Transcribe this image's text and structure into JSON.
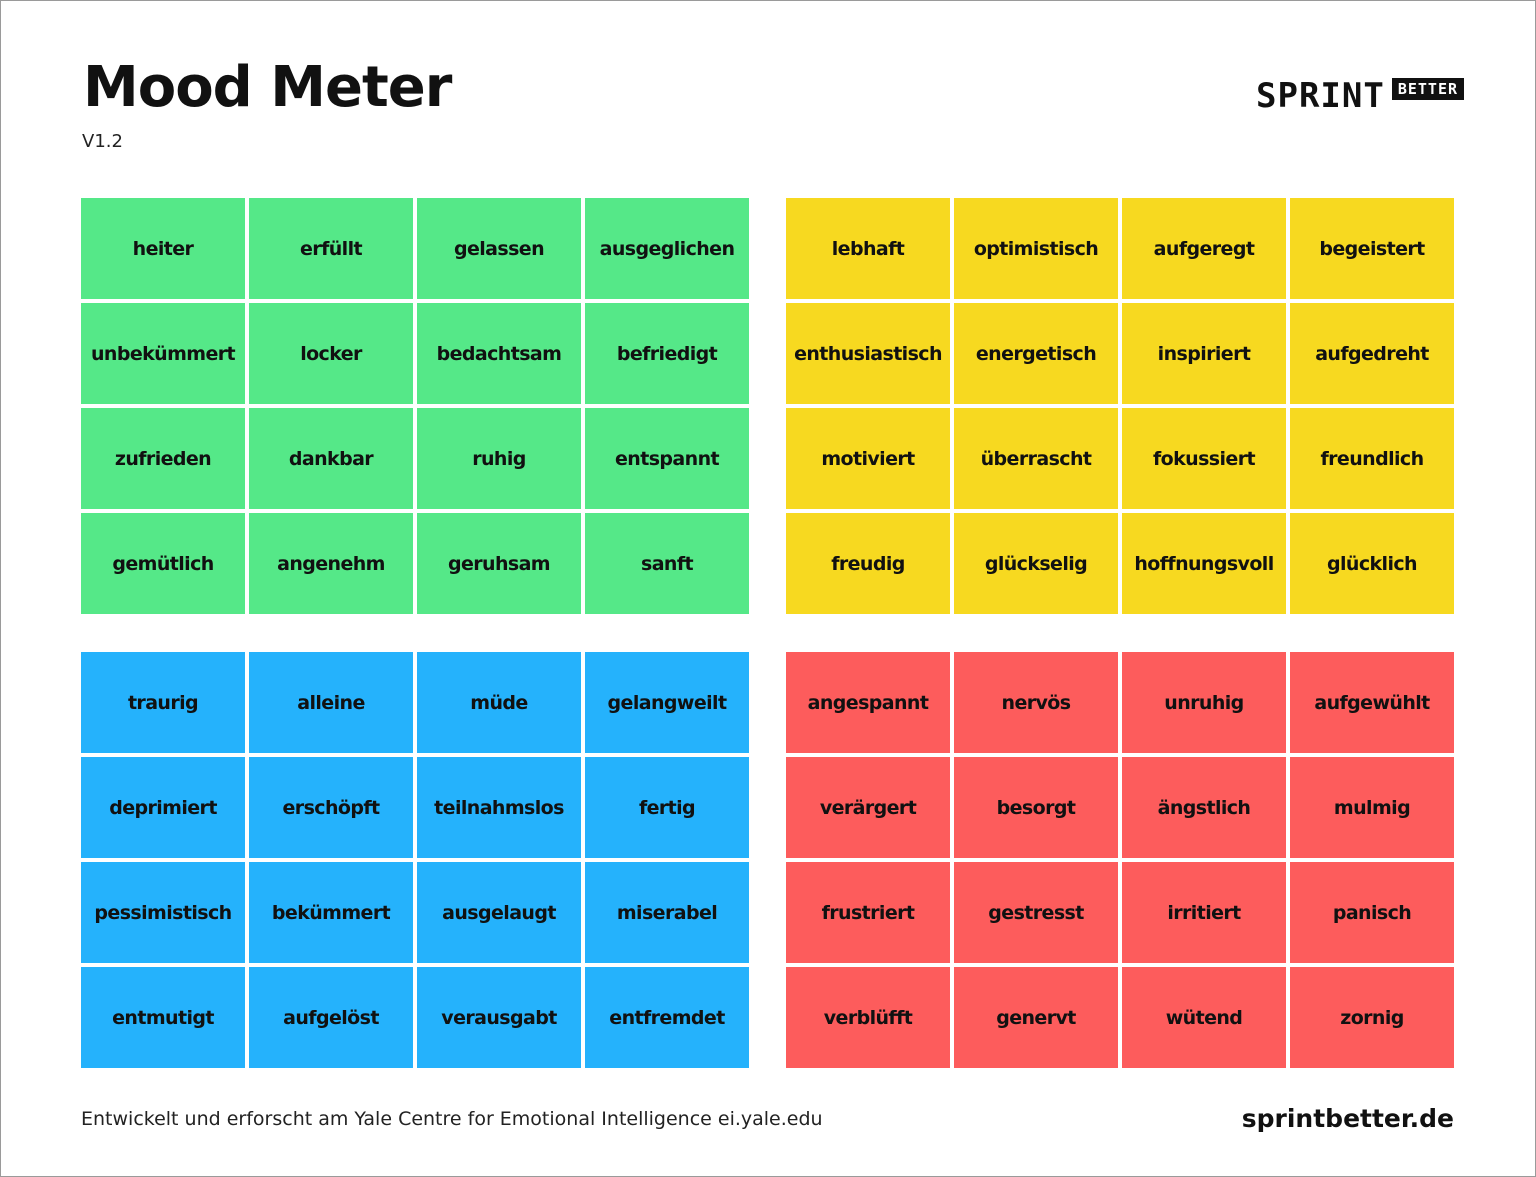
{
  "header": {
    "title": "Mood Meter",
    "version": "V1.2"
  },
  "logo": {
    "sprint": "SPRINT",
    "better": "BETTER"
  },
  "colors": {
    "green": "#55e888",
    "yellow": "#f7d920",
    "blue": "#25b2fc",
    "red": "#fd5c5c"
  },
  "quadrants": [
    {
      "id": "green",
      "words": [
        "heiter",
        "erfüllt",
        "gelassen",
        "ausgeglichen",
        "unbekümmert",
        "locker",
        "bedachtsam",
        "befriedigt",
        "zufrieden",
        "dankbar",
        "ruhig",
        "entspannt",
        "gemütlich",
        "angenehm",
        "geruhsam",
        "sanft"
      ]
    },
    {
      "id": "yellow",
      "words": [
        "lebhaft",
        "optimistisch",
        "aufgeregt",
        "begeistert",
        "enthusiastisch",
        "energetisch",
        "inspiriert",
        "aufgedreht",
        "motiviert",
        "überrascht",
        "fokussiert",
        "freundlich",
        "freudig",
        "glückselig",
        "hoffnungsvoll",
        "glücklich"
      ]
    },
    {
      "id": "blue",
      "words": [
        "traurig",
        "alleine",
        "müde",
        "gelangweilt",
        "deprimiert",
        "erschöpft",
        "teilnahmslos",
        "fertig",
        "pessimistisch",
        "bekümmert",
        "ausgelaugt",
        "miserabel",
        "entmutigt",
        "aufgelöst",
        "verausgabt",
        "entfremdet"
      ]
    },
    {
      "id": "red",
      "words": [
        "angespannt",
        "nervös",
        "unruhig",
        "aufgewühlt",
        "verärgert",
        "besorgt",
        "ängstlich",
        "mulmig",
        "frustriert",
        "gestresst",
        "irritiert",
        "panisch",
        "verblüfft",
        "genervt",
        "wütend",
        "zornig"
      ]
    }
  ],
  "footer": {
    "credit": "Entwickelt und erforscht am Yale Centre for Emotional Intelligence ei.yale.edu",
    "website": "sprintbetter.de"
  }
}
